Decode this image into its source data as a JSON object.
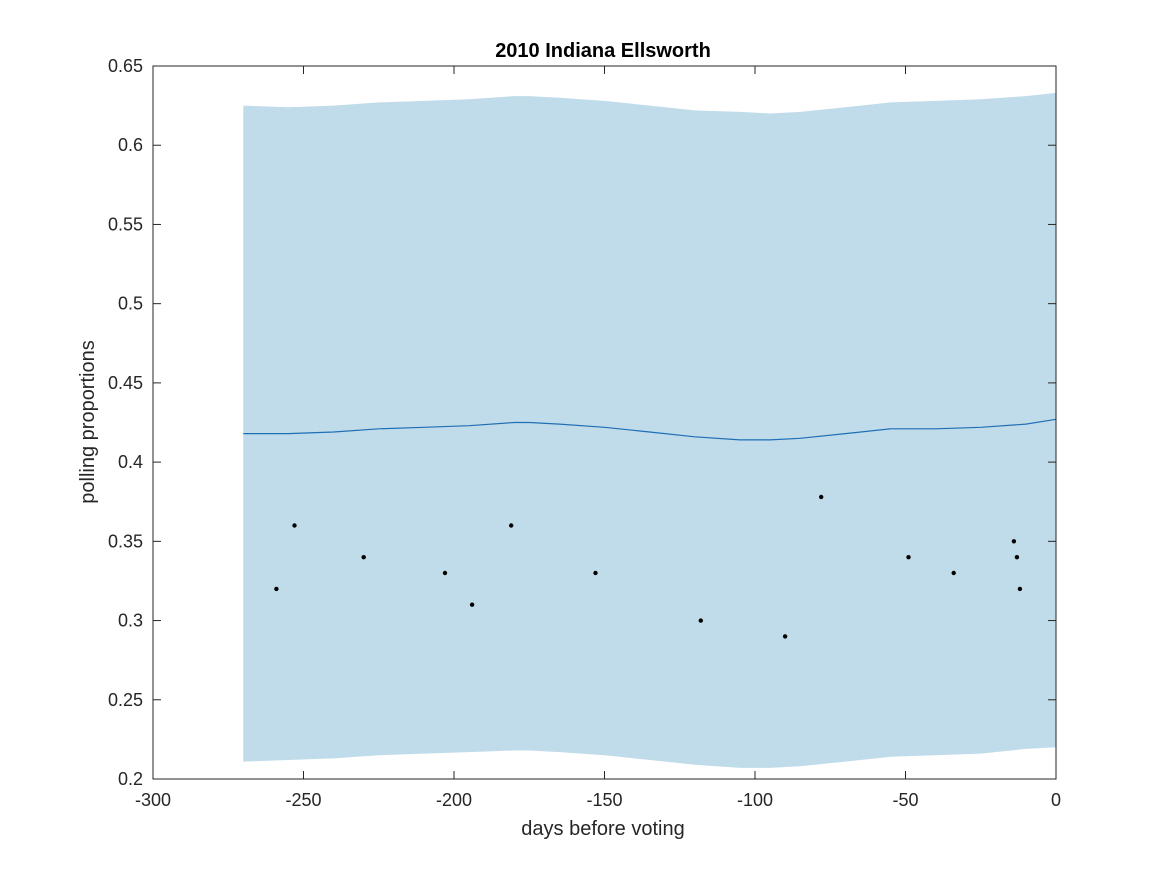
{
  "chart_data": {
    "type": "line",
    "title": "2010 Indiana Ellsworth",
    "xlabel": "days before voting",
    "ylabel": "polling proportions",
    "xlim": [
      -300,
      0
    ],
    "ylim": [
      0.2,
      0.65
    ],
    "xticks": [
      -300,
      -250,
      -200,
      -150,
      -100,
      -50,
      0
    ],
    "xtick_labels": [
      "-300",
      "-250",
      "-200",
      "-150",
      "-100",
      "-50",
      "0"
    ],
    "yticks": [
      0.2,
      0.25,
      0.3,
      0.35,
      0.4,
      0.45,
      0.5,
      0.55,
      0.6,
      0.65
    ],
    "ytick_labels": [
      "0.2",
      "0.25",
      "0.3",
      "0.35",
      "0.4",
      "0.45",
      "0.5",
      "0.55",
      "0.6",
      "0.65"
    ],
    "grid": false,
    "colors": {
      "band": "#c0dcea",
      "mean": "#1f6fb5",
      "points": "#000000",
      "axis": "#262626"
    },
    "mean": {
      "x": [
        -270,
        -255,
        -240,
        -225,
        -210,
        -195,
        -180,
        -175,
        -165,
        -150,
        -135,
        -120,
        -105,
        -95,
        -85,
        -70,
        -55,
        -40,
        -25,
        -10,
        0
      ],
      "y": [
        0.418,
        0.418,
        0.419,
        0.421,
        0.422,
        0.423,
        0.425,
        0.425,
        0.424,
        0.422,
        0.419,
        0.416,
        0.414,
        0.414,
        0.415,
        0.418,
        0.421,
        0.421,
        0.422,
        0.424,
        0.427
      ]
    },
    "band": {
      "x": [
        -270,
        -255,
        -240,
        -225,
        -210,
        -195,
        -180,
        -175,
        -165,
        -150,
        -135,
        -120,
        -105,
        -95,
        -85,
        -70,
        -55,
        -40,
        -25,
        -10,
        0
      ],
      "upper": [
        0.625,
        0.624,
        0.625,
        0.627,
        0.628,
        0.629,
        0.631,
        0.631,
        0.63,
        0.628,
        0.625,
        0.622,
        0.621,
        0.62,
        0.621,
        0.624,
        0.627,
        0.628,
        0.629,
        0.631,
        0.633
      ],
      "lower": [
        0.211,
        0.212,
        0.213,
        0.215,
        0.216,
        0.217,
        0.218,
        0.218,
        0.217,
        0.215,
        0.212,
        0.209,
        0.207,
        0.207,
        0.208,
        0.211,
        0.214,
        0.215,
        0.216,
        0.219,
        0.22
      ]
    },
    "points": {
      "x": [
        -259,
        -253,
        -230,
        -203,
        -194,
        -181,
        -153,
        -118,
        -90,
        -78,
        -49,
        -34,
        -14,
        -13,
        -12
      ],
      "y": [
        0.32,
        0.36,
        0.34,
        0.33,
        0.31,
        0.36,
        0.33,
        0.3,
        0.29,
        0.378,
        0.34,
        0.33,
        0.35,
        0.34,
        0.32
      ]
    }
  }
}
